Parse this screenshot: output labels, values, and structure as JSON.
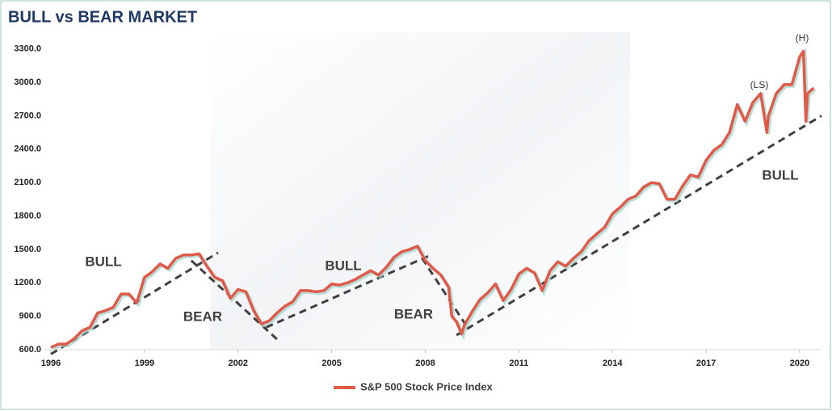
{
  "chart_data": {
    "type": "line",
    "title": "BULL vs BEAR MARKET",
    "x": [
      1996.0,
      1996.25,
      1996.5,
      1996.75,
      1997.0,
      1997.25,
      1997.5,
      1997.75,
      1998.0,
      1998.25,
      1998.5,
      1998.75,
      1999.0,
      1999.25,
      1999.5,
      1999.75,
      2000.0,
      2000.25,
      2000.5,
      2000.75,
      2001.0,
      2001.25,
      2001.5,
      2001.75,
      2002.0,
      2002.25,
      2002.5,
      2002.75,
      2003.0,
      2003.25,
      2003.5,
      2003.75,
      2004.0,
      2004.25,
      2004.5,
      2004.75,
      2005.0,
      2005.25,
      2005.5,
      2005.75,
      2006.0,
      2006.25,
      2006.5,
      2006.75,
      2007.0,
      2007.25,
      2007.5,
      2007.75,
      2008.0,
      2008.25,
      2008.5,
      2008.75,
      2008.85,
      2009.0,
      2009.17,
      2009.25,
      2009.5,
      2009.75,
      2010.0,
      2010.25,
      2010.5,
      2010.75,
      2011.0,
      2011.25,
      2011.5,
      2011.75,
      2012.0,
      2012.25,
      2012.5,
      2012.75,
      2013.0,
      2013.25,
      2013.5,
      2013.75,
      2014.0,
      2014.25,
      2014.5,
      2014.75,
      2015.0,
      2015.25,
      2015.5,
      2015.75,
      2016.0,
      2016.25,
      2016.5,
      2016.75,
      2017.0,
      2017.25,
      2017.5,
      2017.75,
      2018.0,
      2018.25,
      2018.5,
      2018.75,
      2018.95,
      2019.0,
      2019.25,
      2019.5,
      2019.75,
      2020.0,
      2020.12,
      2020.2,
      2020.25,
      2020.45
    ],
    "series": [
      {
        "name": "S&P 500 Stock Price Index",
        "color": "#e05a4a",
        "values": [
          620,
          650,
          650,
          700,
          770,
          800,
          930,
          950,
          980,
          1100,
          1100,
          1020,
          1250,
          1300,
          1370,
          1330,
          1420,
          1450,
          1450,
          1460,
          1350,
          1250,
          1220,
          1060,
          1140,
          1120,
          950,
          830,
          860,
          930,
          990,
          1030,
          1130,
          1130,
          1120,
          1130,
          1190,
          1180,
          1200,
          1230,
          1270,
          1310,
          1270,
          1340,
          1430,
          1480,
          1500,
          1530,
          1400,
          1330,
          1270,
          1160,
          900,
          850,
          740,
          820,
          940,
          1050,
          1110,
          1190,
          1040,
          1140,
          1280,
          1330,
          1290,
          1130,
          1310,
          1390,
          1350,
          1420,
          1480,
          1580,
          1640,
          1700,
          1820,
          1880,
          1950,
          1980,
          2060,
          2100,
          2090,
          1950,
          1950,
          2070,
          2170,
          2150,
          2300,
          2390,
          2440,
          2550,
          2800,
          2650,
          2820,
          2900,
          2550,
          2700,
          2900,
          2980,
          2980,
          3230,
          3280,
          2650,
          2900,
          2950
        ]
      }
    ],
    "trendlines": [
      {
        "x": [
          1996.0,
          2001.36
        ],
        "values": [
          560,
          1471
        ]
      },
      {
        "x": [
          2000.5,
          2003.3
        ],
        "values": [
          1400,
          680
        ]
      },
      {
        "x": [
          2002.9,
          2008.1
        ],
        "values": [
          800,
          1440
        ]
      },
      {
        "x": [
          2007.9,
          2009.35
        ],
        "values": [
          1420,
          800
        ]
      },
      {
        "x": [
          2009.0,
          2020.7
        ],
        "values": [
          730,
          2700
        ]
      }
    ],
    "annotations": [
      "BULL",
      "BEAR",
      "BULL",
      "BEAR",
      "BULL",
      "(LS)",
      "(H)"
    ],
    "xlim": [
      1996,
      2020.7
    ],
    "xticks": [
      1996,
      1999,
      2002,
      2005,
      2008,
      2011,
      2014,
      2017,
      2020
    ],
    "ylim": [
      600,
      3450
    ],
    "yticks": [
      {
        "value": 600,
        "label": "600.0"
      },
      {
        "value": 900,
        "label": "900.0"
      },
      {
        "value": 1200,
        "label": "1200.0"
      },
      {
        "value": 1500,
        "label": "1500.0"
      },
      {
        "value": 1800,
        "label": "1800.0"
      },
      {
        "value": 2100,
        "label": "2100.0"
      },
      {
        "value": 2400,
        "label": "2400.0"
      },
      {
        "value": 2700,
        "label": "2700.0"
      },
      {
        "value": 3000,
        "label": "3000.0"
      },
      {
        "value": 3300,
        "label": "3300.0"
      }
    ],
    "legend": "bottom"
  }
}
